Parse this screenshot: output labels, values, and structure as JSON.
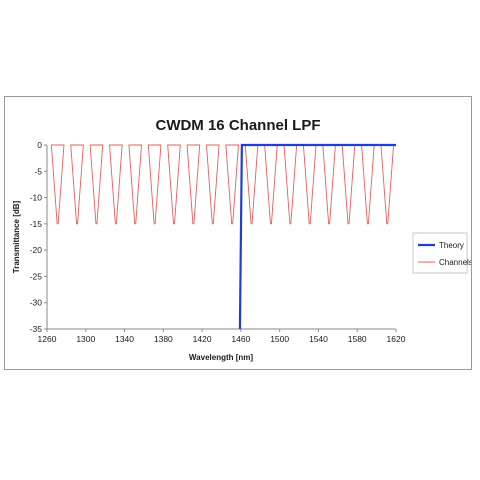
{
  "chart_data": {
    "type": "line",
    "title": "CWDM 16 Channel LPF",
    "xlabel": "Wavelength [nm]",
    "ylabel": "Transmittance [dB]",
    "xlim": [
      1260,
      1620
    ],
    "ylim": [
      -35,
      0
    ],
    "x_ticks": [
      1260,
      1300,
      1340,
      1380,
      1420,
      1460,
      1500,
      1540,
      1580,
      1620
    ],
    "y_ticks": [
      0,
      -5,
      -10,
      -15,
      -20,
      -25,
      -30,
      -35
    ],
    "grid": false,
    "legend_position": "right",
    "series": [
      {
        "name": "Theory",
        "color": "#1f3fd0",
        "x": [
          1459,
          1461,
          1620
        ],
        "y": [
          -35,
          0,
          0
        ]
      },
      {
        "name": "Channels",
        "color": "#e06060",
        "channel_centers": [
          1271,
          1291,
          1311,
          1331,
          1351,
          1371,
          1391,
          1411,
          1431,
          1451,
          1471,
          1491,
          1511,
          1531,
          1551,
          1571,
          1591,
          1611
        ],
        "passband_width": 13,
        "stopband_width": 1,
        "y_top": 0,
        "y_bottom": -15
      }
    ]
  }
}
